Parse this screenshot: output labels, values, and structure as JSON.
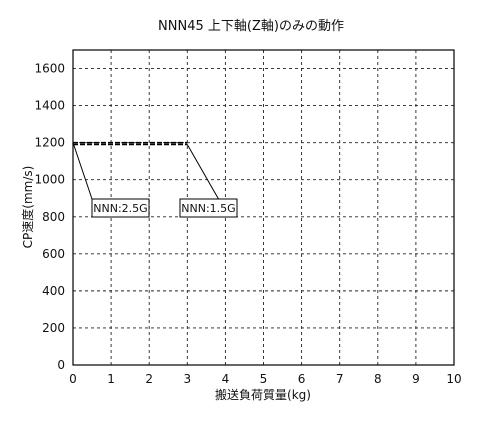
{
  "chart_data": {
    "type": "line",
    "title": "NNN45 上下軸(Z軸)のみの動作",
    "xlabel": "搬送負荷質量(kg)",
    "ylabel": "CP速度(mm/s)",
    "xlim": [
      0,
      10
    ],
    "ylim": [
      0,
      1700
    ],
    "x_ticks": [
      "0",
      "1",
      "2",
      "3",
      "4",
      "5",
      "6",
      "7",
      "8",
      "9",
      "10"
    ],
    "y_ticks": [
      "0",
      "200",
      "400",
      "600",
      "800",
      "1000",
      "1200",
      "1400",
      "1600"
    ],
    "grid": true,
    "series": [
      {
        "name": "NNN:2.5G",
        "x": [
          0,
          3
        ],
        "y": [
          1200,
          1200
        ]
      },
      {
        "name": "NNN:1.5G",
        "x": [
          0,
          3
        ],
        "y": [
          1190,
          1190
        ]
      }
    ],
    "annotations": [
      {
        "label": "NNN:2.5G",
        "point": [
          0,
          1200
        ]
      },
      {
        "label": "NNN:1.5G",
        "point": [
          3,
          1190
        ]
      }
    ]
  }
}
